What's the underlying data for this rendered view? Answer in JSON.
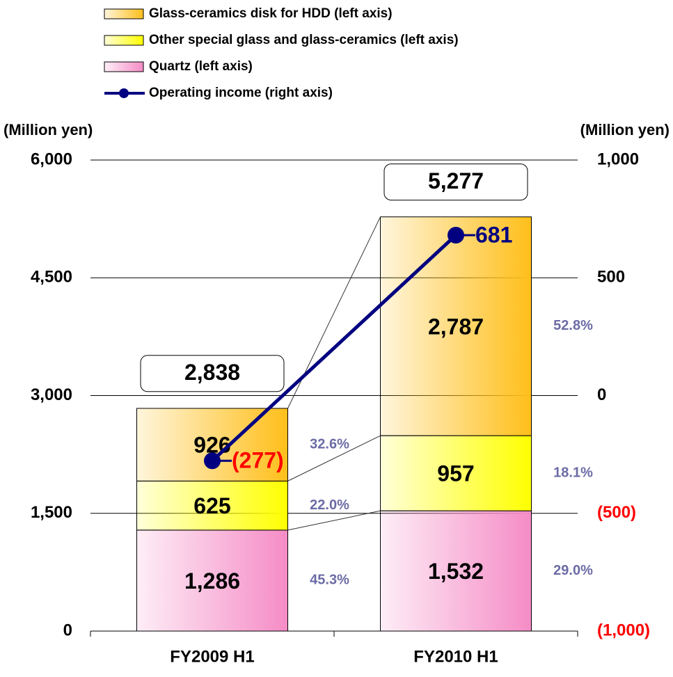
{
  "chart_data": {
    "type": "stacked_bar_line",
    "categories": [
      "FY2009 H1",
      "FY2010 H1"
    ],
    "y_axis_label": "(Million yen)",
    "y2_axis_label": "(Million yen)",
    "ylim": [
      0,
      6000
    ],
    "yticks": [
      0,
      {
        "value": 1500,
        "label": "1,500"
      },
      {
        "value": 3000,
        "label": "3,000"
      },
      {
        "value": 4500,
        "label": "4,500"
      },
      {
        "value": 6000,
        "label": "6,000"
      }
    ],
    "y2lim": [
      -1000,
      1000
    ],
    "y2ticks": [
      {
        "value": -1000,
        "label": "(1,000)"
      },
      {
        "value": -500,
        "label": "(500)"
      },
      0,
      500,
      {
        "value": 1000,
        "label": "1,000"
      }
    ],
    "grid": true,
    "series": [
      {
        "name": "Quartz (left axis)",
        "color": "#f58cc6",
        "values": [
          1286,
          1532
        ],
        "value_labels": [
          "1,286",
          "1,532"
        ],
        "shares": [
          45.3,
          29.0
        ],
        "share_labels": [
          "45.3%",
          "29.0%"
        ]
      },
      {
        "name": "Other special glass and glass-ceramics (left axis)",
        "color": "#ffff00",
        "values": [
          625,
          957
        ],
        "value_labels": [
          "625",
          "957"
        ],
        "shares": [
          22.0,
          18.1
        ],
        "share_labels": [
          "22.0%",
          "18.1%"
        ]
      },
      {
        "name": "Glass-ceramics disk for HDD (left axis)",
        "color": "#ffbf1a",
        "values": [
          926,
          2787
        ],
        "value_labels": [
          "926",
          "2,787"
        ],
        "shares": [
          32.6,
          52.8
        ],
        "share_labels": [
          "32.6%",
          "52.8%"
        ]
      },
      {
        "name": "Operating income (right axis)",
        "type": "line",
        "axis": "y2",
        "color": "#000080",
        "values": [
          -277,
          681
        ],
        "value_labels": [
          "(277)",
          "681"
        ]
      }
    ],
    "totals": [
      2838,
      5277
    ],
    "total_labels": [
      "2,838",
      "5,277"
    ],
    "negative_color": "#ff0000",
    "share_color": "#6b6ba6"
  }
}
